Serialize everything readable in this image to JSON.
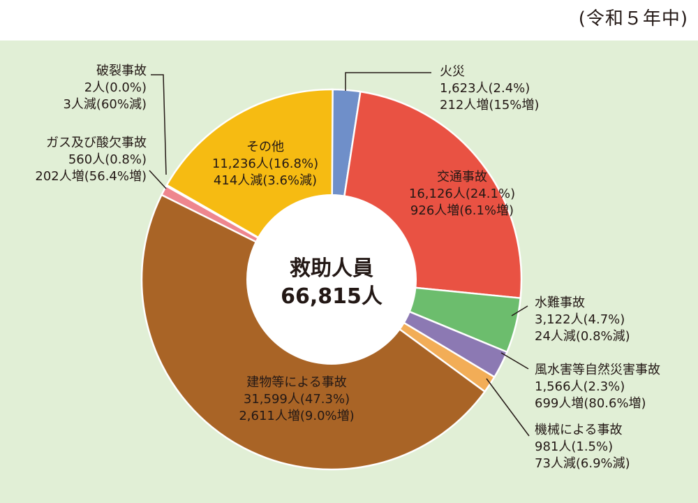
{
  "period_label": "(令和５年中)",
  "chart_data": {
    "type": "pie",
    "style": "donut",
    "total": {
      "label": "救助人員",
      "value": "66,815人"
    },
    "slices": [
      {
        "key": "fire",
        "name": "火災",
        "count": 1623,
        "count_text": "1,623人(2.4%)",
        "percent": 2.4,
        "change_text": "212人増(15%増)",
        "color": "#6f8fc9"
      },
      {
        "key": "traffic",
        "name": "交通事故",
        "count": 16126,
        "count_text": "16,126人(24.1%)",
        "percent": 24.1,
        "change_text": "926人増(6.1%増)",
        "color": "#e95243"
      },
      {
        "key": "water",
        "name": "水難事故",
        "count": 3122,
        "count_text": "3,122人(4.7%)",
        "percent": 4.7,
        "change_text": "24人減(0.8%減)",
        "color": "#6cbd6d"
      },
      {
        "key": "storm",
        "name": "風水害等自然災害事故",
        "count": 1566,
        "count_text": "1,566人(2.3%)",
        "percent": 2.3,
        "change_text": "699人増(80.6%増)",
        "color": "#8c79b3"
      },
      {
        "key": "machine",
        "name": "機械による事故",
        "count": 981,
        "count_text": "981人(1.5%)",
        "percent": 1.5,
        "change_text": "73人減(6.9%減)",
        "color": "#f2ad57"
      },
      {
        "key": "building",
        "name": "建物等による事故",
        "count": 31599,
        "count_text": "31,599人(47.3%)",
        "percent": 47.3,
        "change_text": "2,611人増(9.0%増)",
        "color": "#a96426"
      },
      {
        "key": "gas",
        "name": "ガス及び酸欠事故",
        "count": 560,
        "count_text": "560人(0.8%)",
        "percent": 0.8,
        "change_text": "202人増(56.4%増)",
        "color": "#ee868e"
      },
      {
        "key": "rupture",
        "name": "破裂事故",
        "count": 2,
        "count_text": "2人(0.0%)",
        "percent": 0.0,
        "change_text": "3人減(60%減)",
        "color": "#e33b3b"
      },
      {
        "key": "other",
        "name": "その他",
        "count": 11236,
        "count_text": "11,236人(16.8%)",
        "percent": 16.8,
        "change_text": "414人減(3.6%減)",
        "color": "#f6bb12"
      }
    ]
  }
}
